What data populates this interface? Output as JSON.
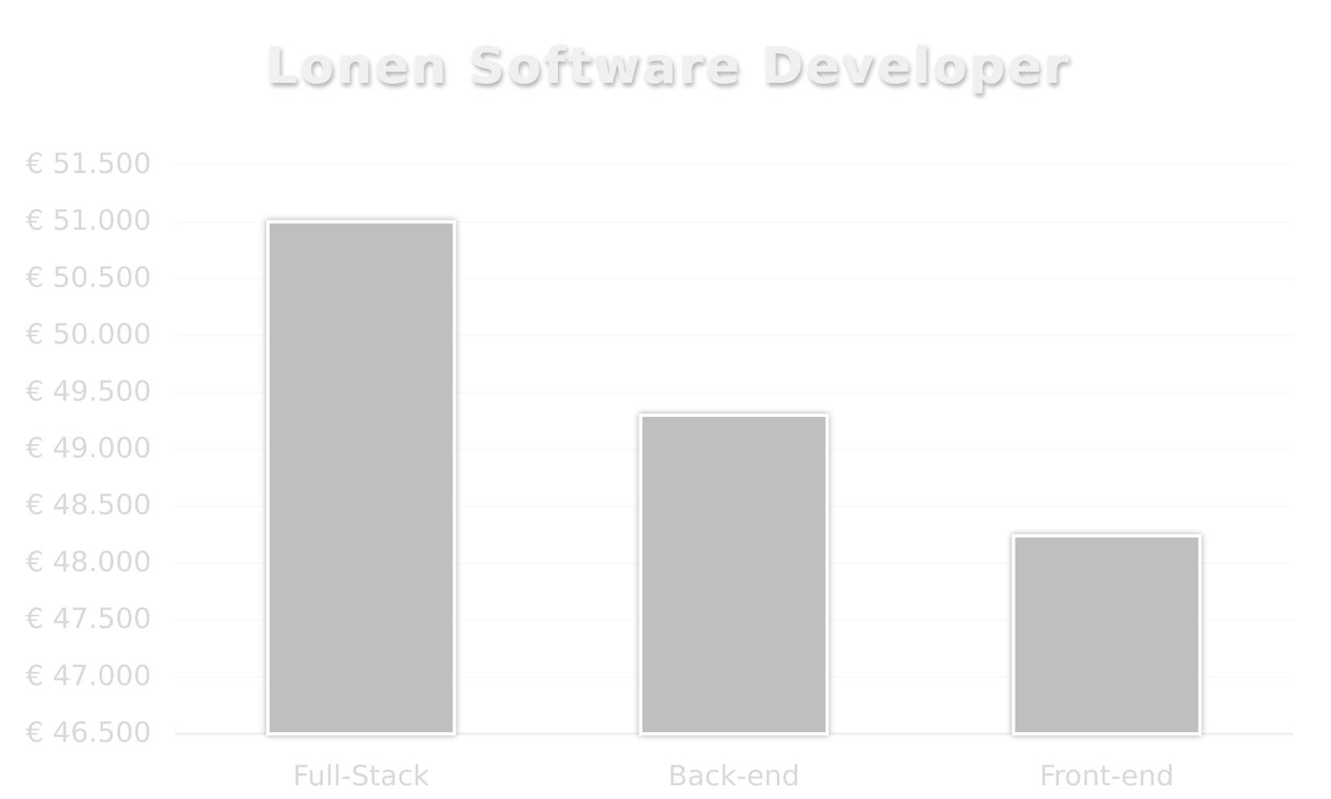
{
  "chart_data": {
    "type": "bar",
    "title": "Lonen Software Developer",
    "categories": [
      "Full-Stack",
      "Back-end",
      "Front-end"
    ],
    "values": [
      51000,
      49300,
      48240
    ],
    "color": "#bfbfbf",
    "ylim": [
      46500,
      51500
    ],
    "yticks": [
      {
        "value": 46500,
        "label": "€ 46.500"
      },
      {
        "value": 47000,
        "label": "€ 47.000"
      },
      {
        "value": 47500,
        "label": "€ 47.500"
      },
      {
        "value": 48000,
        "label": "€ 48.000"
      },
      {
        "value": 48500,
        "label": "€ 48.500"
      },
      {
        "value": 49000,
        "label": "€ 49.000"
      },
      {
        "value": 49500,
        "label": "€ 49.500"
      },
      {
        "value": 50000,
        "label": "€ 50.000"
      },
      {
        "value": 50500,
        "label": "€ 50.500"
      },
      {
        "value": 51000,
        "label": "€ 51.000"
      },
      {
        "value": 51500,
        "label": "€ 51.500"
      }
    ],
    "grid": true
  }
}
